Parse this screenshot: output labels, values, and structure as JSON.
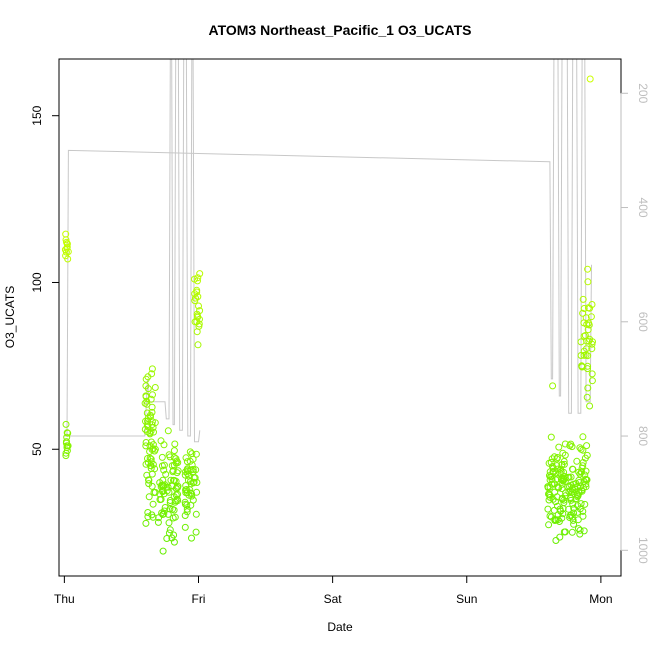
{
  "chart_data": {
    "type": "scatter",
    "title": "ATOM3 Northeast_Pacific_1 O3_UCATS",
    "xlabel": "Date",
    "ylabel": "O3_UCATS",
    "x_ticks": [
      "Thu",
      "Fri",
      "Sat",
      "Sun",
      "Mon"
    ],
    "xlim": [
      -0.04,
      4.15
    ],
    "ylim": [
      12,
      167
    ],
    "y_ticks": [
      50,
      100,
      150
    ],
    "right_axis": {
      "label": "",
      "ylim": [
        1045,
        140
      ],
      "ticks": [
        200,
        400,
        600,
        800,
        1000
      ],
      "color": "#bebebe"
    },
    "grid": false,
    "series": [
      {
        "kind": "points",
        "color_low": "#66ee00",
        "color_high": "#ccff00",
        "clusters": [
          {
            "x0": 0.005,
            "x1": 0.03,
            "ymin": 102,
            "ymax": 117,
            "n": 12
          },
          {
            "x0": 0.005,
            "x1": 0.03,
            "ymin": 43,
            "ymax": 62,
            "n": 12
          },
          {
            "x0": 0.6,
            "x1": 0.68,
            "ymin": 20,
            "ymax": 82,
            "n": 70
          },
          {
            "x0": 0.7,
            "x1": 0.85,
            "ymin": 15,
            "ymax": 60,
            "n": 80
          },
          {
            "x0": 0.9,
            "x1": 0.99,
            "ymin": 20,
            "ymax": 62,
            "n": 50
          },
          {
            "x0": 0.97,
            "x1": 1.01,
            "ymin": 74,
            "ymax": 109,
            "n": 22
          },
          {
            "x0": 3.6,
            "x1": 3.72,
            "ymin": 20,
            "ymax": 58,
            "n": 70
          },
          {
            "x0": 3.7,
            "x1": 3.9,
            "ymin": 20,
            "ymax": 58,
            "n": 100
          },
          {
            "x0": 3.85,
            "x1": 3.94,
            "ymin": 55,
            "ymax": 110,
            "n": 40
          }
        ],
        "extra_points": [
          [
            3.92,
            161
          ],
          [
            3.64,
            69
          ],
          [
            0.61,
            71
          ]
        ]
      },
      {
        "kind": "line",
        "axis": "right",
        "color": "#c8c8c8",
        "points": [
          [
            0.0,
            800
          ],
          [
            0.02,
            800
          ],
          [
            0.03,
            300
          ],
          [
            3.62,
            320
          ],
          [
            3.63,
            700
          ],
          [
            3.64,
            700
          ],
          [
            3.65,
            140
          ],
          [
            3.68,
            140
          ],
          [
            3.69,
            730
          ],
          [
            3.7,
            730
          ],
          [
            3.71,
            140
          ],
          [
            3.75,
            140
          ],
          [
            3.76,
            760
          ],
          [
            3.78,
            760
          ],
          [
            3.79,
            140
          ],
          [
            3.82,
            140
          ],
          [
            3.83,
            760
          ],
          [
            3.85,
            760
          ],
          [
            3.86,
            140
          ],
          [
            3.88,
            140
          ],
          [
            3.89,
            740
          ],
          [
            3.92,
            740
          ],
          [
            3.93,
            500
          ]
        ]
      },
      {
        "kind": "line",
        "axis": "right",
        "color": "#c8c8c8",
        "points": [
          [
            0.0,
            800
          ],
          [
            0.6,
            800
          ],
          [
            0.62,
            700
          ],
          [
            0.63,
            740
          ],
          [
            0.75,
            740
          ],
          [
            0.76,
            770
          ],
          [
            0.78,
            770
          ],
          [
            0.79,
            140
          ],
          [
            0.8,
            140
          ],
          [
            0.81,
            780
          ],
          [
            0.82,
            780
          ],
          [
            0.83,
            140
          ],
          [
            0.85,
            140
          ],
          [
            0.86,
            790
          ],
          [
            0.88,
            790
          ],
          [
            0.89,
            140
          ],
          [
            0.91,
            140
          ],
          [
            0.92,
            800
          ],
          [
            0.94,
            800
          ],
          [
            0.95,
            140
          ],
          [
            0.96,
            140
          ],
          [
            0.97,
            810
          ],
          [
            1.0,
            810
          ],
          [
            1.01,
            790
          ]
        ]
      }
    ]
  }
}
